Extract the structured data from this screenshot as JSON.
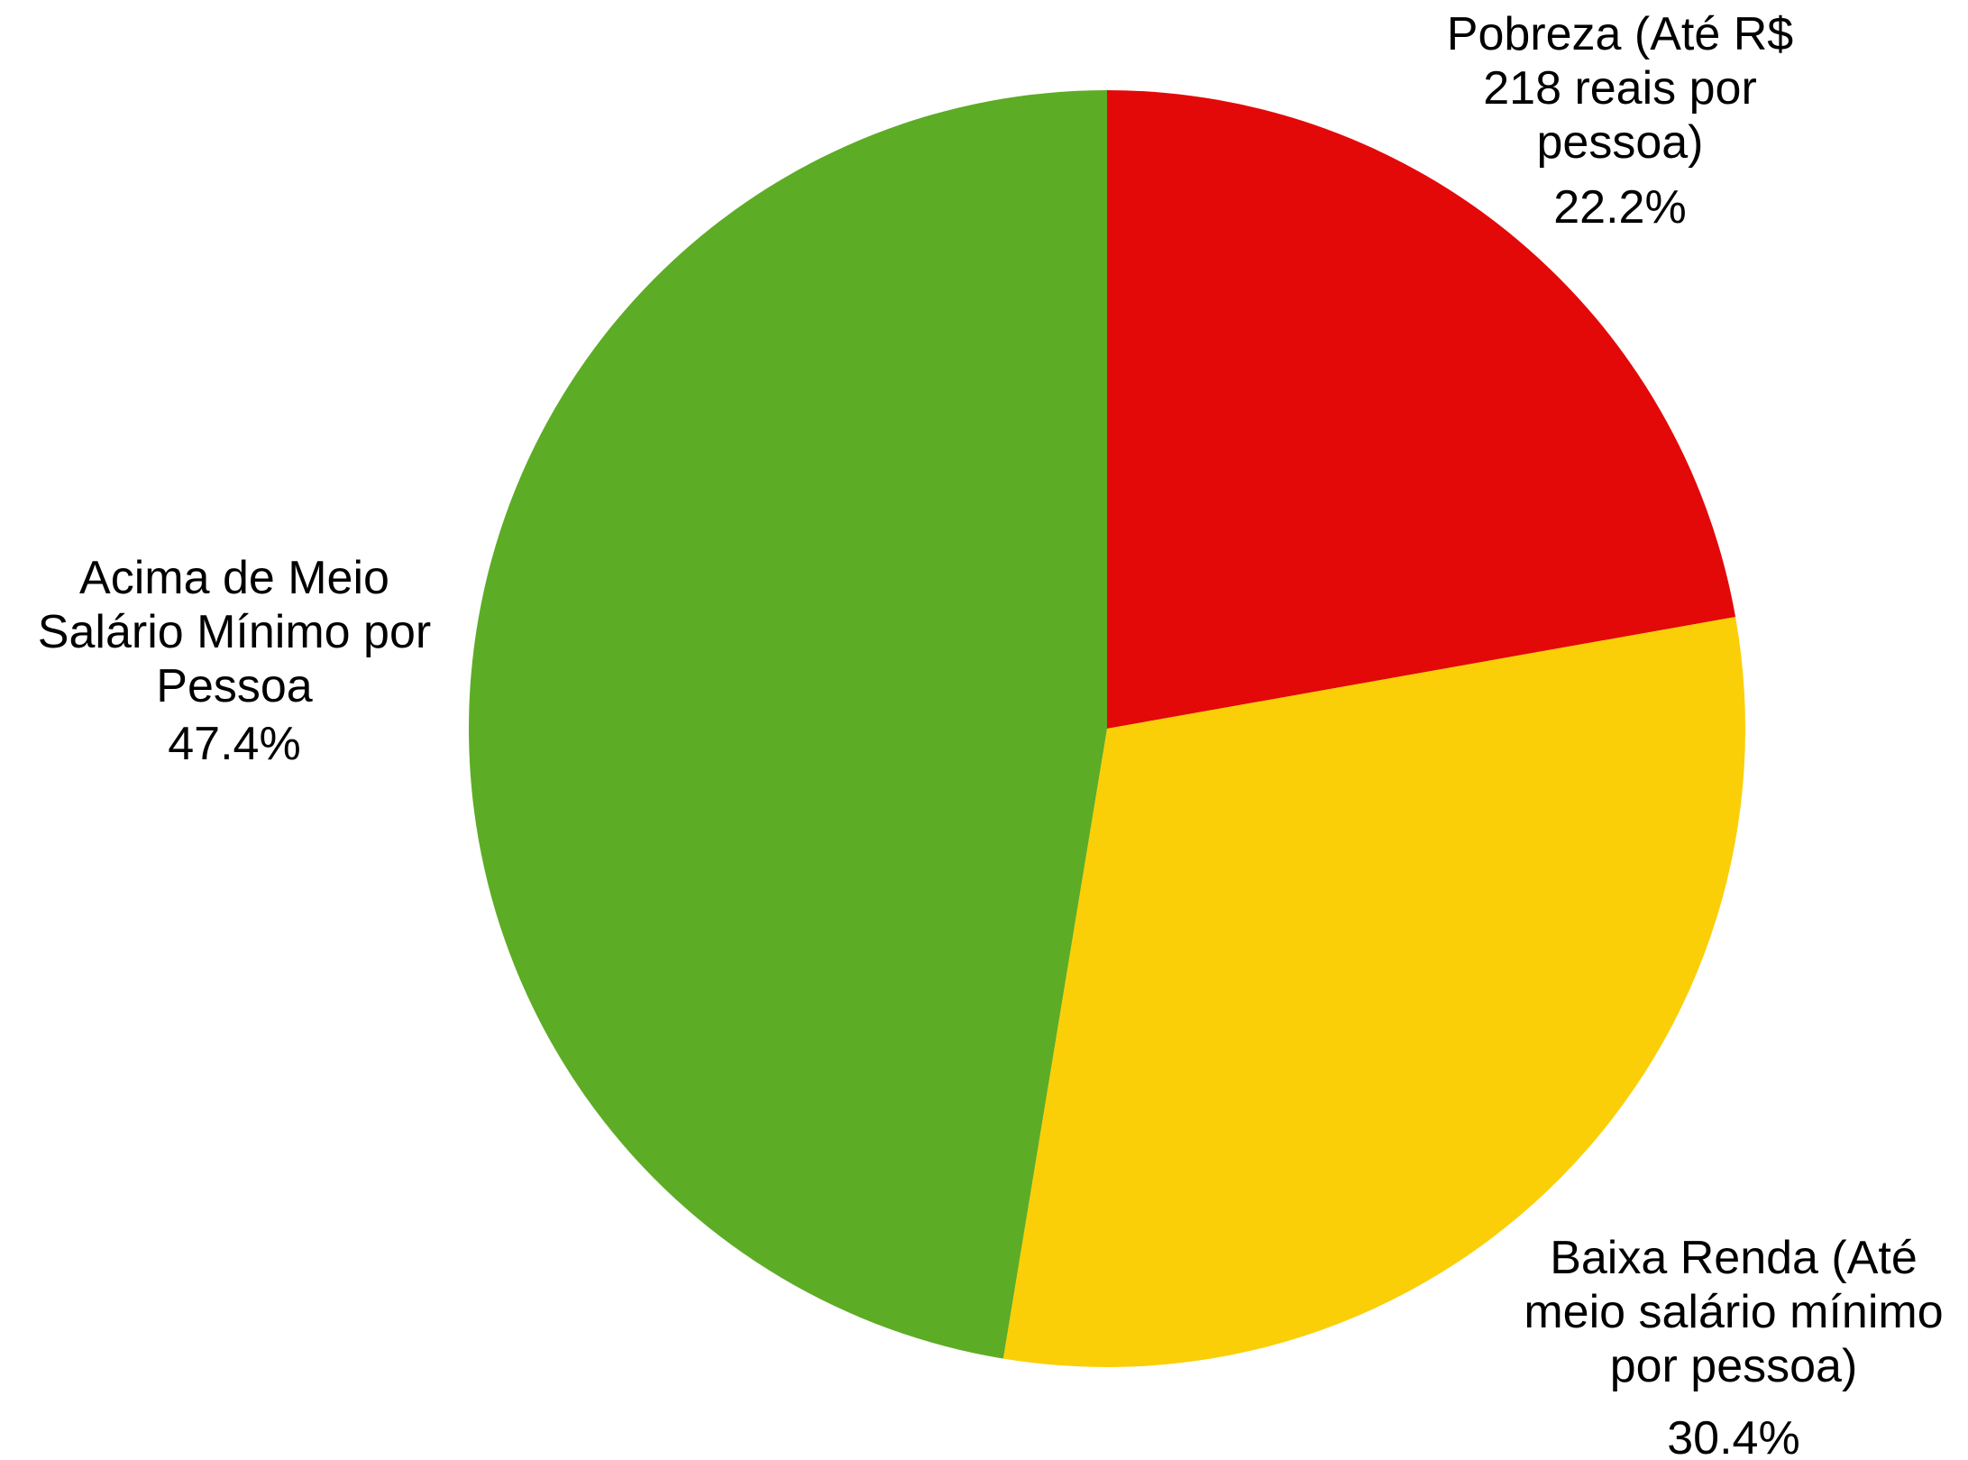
{
  "chart_data": {
    "type": "pie",
    "title": "",
    "slices": [
      {
        "label_lines": [
          "Pobreza (Até R$",
          "218 reais por",
          "pessoa)"
        ],
        "value": 22.2,
        "value_label": "22.2%",
        "color": "#e30909"
      },
      {
        "label_lines": [
          "Baixa Renda (Até",
          "meio salário mínimo",
          "por pessoa)"
        ],
        "value": 30.4,
        "value_label": "30.4%",
        "color": "#fbcf07"
      },
      {
        "label_lines": [
          "Acima de Meio",
          "Salário Mínimo por",
          "Pessoa"
        ],
        "value": 47.4,
        "value_label": "47.4%",
        "color": "#5dac25"
      }
    ],
    "start_angle": "12 o'clock",
    "direction": "clockwise",
    "legend": "none",
    "label_placement": "outside"
  }
}
